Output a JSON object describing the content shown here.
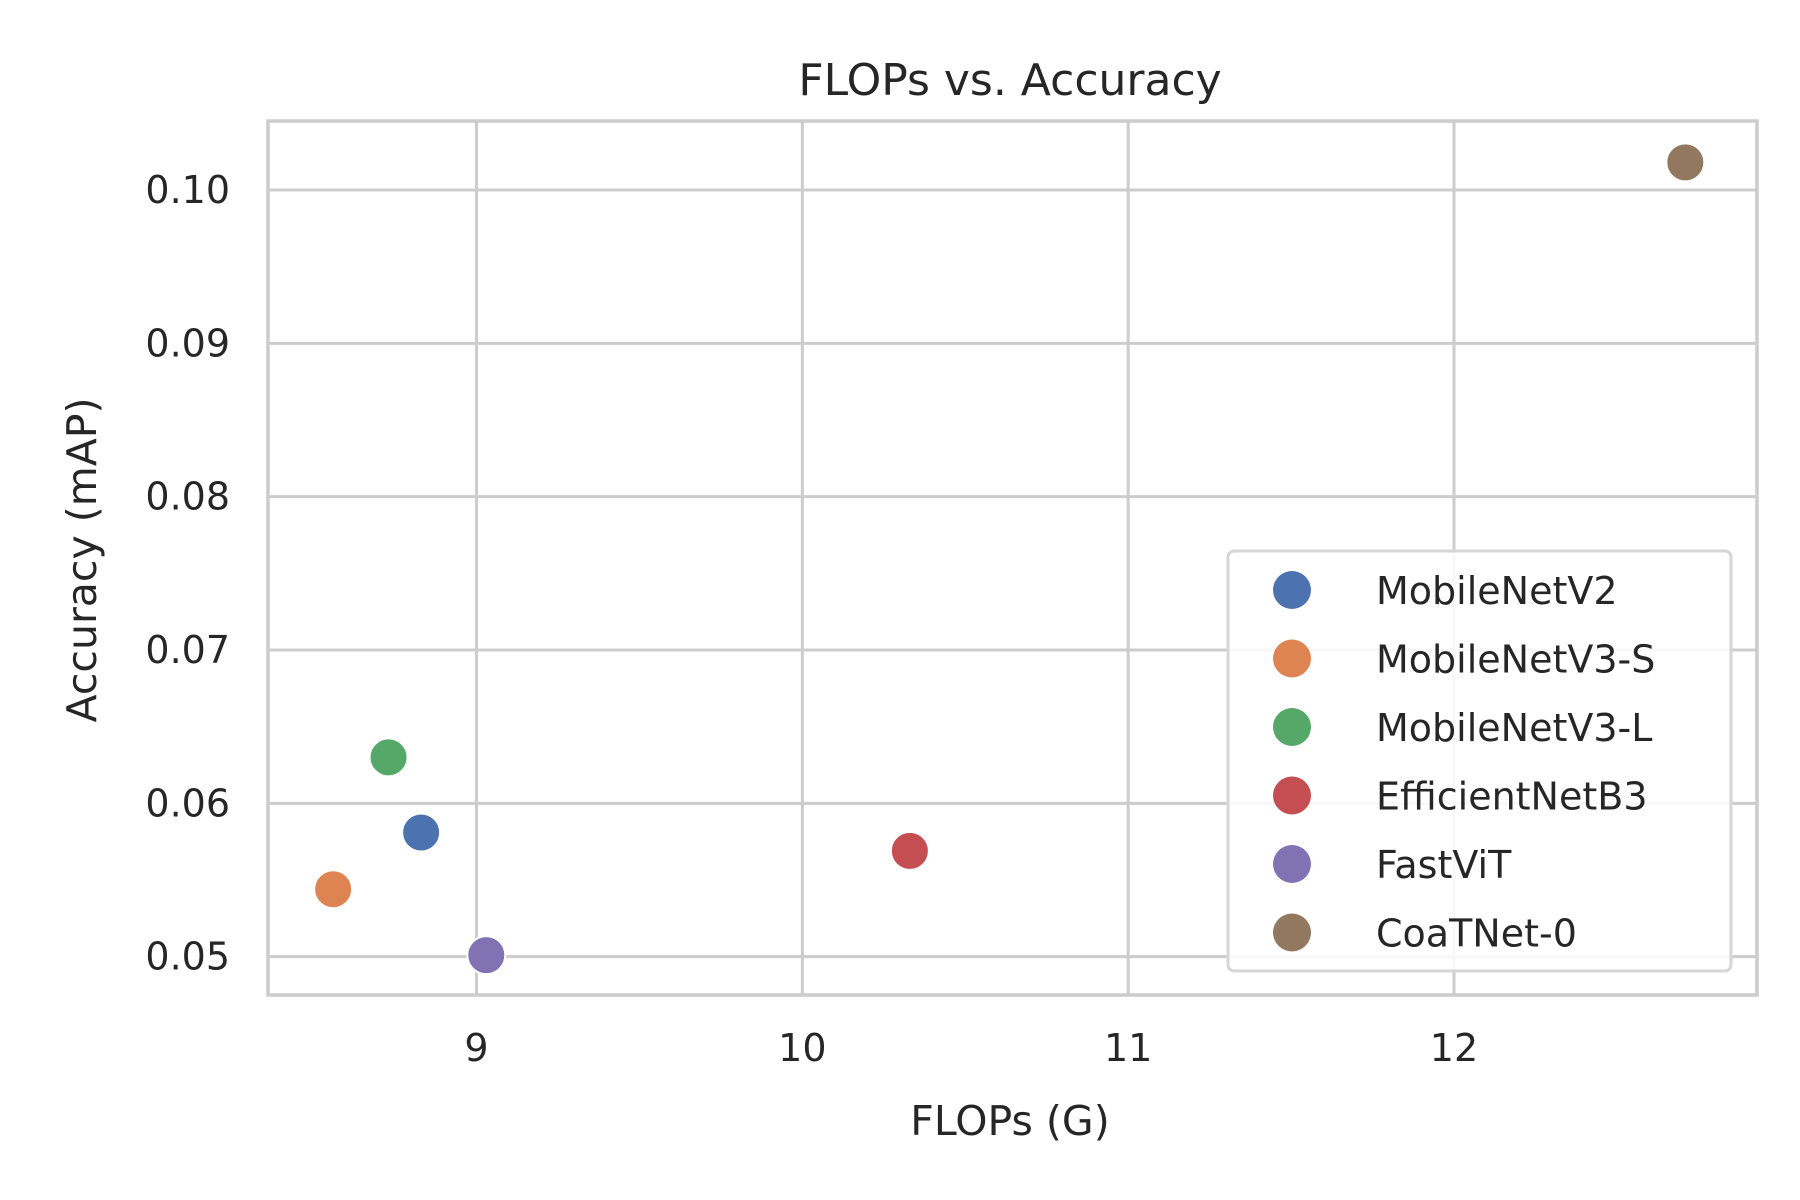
{
  "chart_data": {
    "type": "scatter",
    "title": "FLOPs vs. Accuracy",
    "xlabel": "FLOPs (G)",
    "ylabel": "Accuracy (mAP)",
    "xlim": [
      8.36,
      12.93
    ],
    "ylim": [
      0.0475,
      0.1045
    ],
    "xticks": [
      9,
      10,
      11,
      12
    ],
    "xtick_labels": [
      "9",
      "10",
      "11",
      "12"
    ],
    "yticks": [
      0.05,
      0.06,
      0.07,
      0.08,
      0.09,
      0.1
    ],
    "ytick_labels": [
      "0.05",
      "0.06",
      "0.07",
      "0.08",
      "0.09",
      "0.10"
    ],
    "grid": true,
    "legend_position": "lower-right",
    "series": [
      {
        "name": "MobileNetV2",
        "color": "#4c72b0",
        "x": [
          8.83
        ],
        "y": [
          0.0581
        ]
      },
      {
        "name": "MobileNetV3-S",
        "color": "#dd8452",
        "x": [
          8.56
        ],
        "y": [
          0.0544
        ]
      },
      {
        "name": "MobileNetV3-L",
        "color": "#55a868",
        "x": [
          8.73
        ],
        "y": [
          0.063
        ]
      },
      {
        "name": "EfficientNetB3",
        "color": "#c44e52",
        "x": [
          10.33
        ],
        "y": [
          0.0569
        ]
      },
      {
        "name": "FastViT",
        "color": "#8172b3",
        "x": [
          9.03
        ],
        "y": [
          0.0501
        ]
      },
      {
        "name": "CoaTNet-0",
        "color": "#937860",
        "x": [
          12.71
        ],
        "y": [
          0.1018
        ]
      }
    ]
  }
}
